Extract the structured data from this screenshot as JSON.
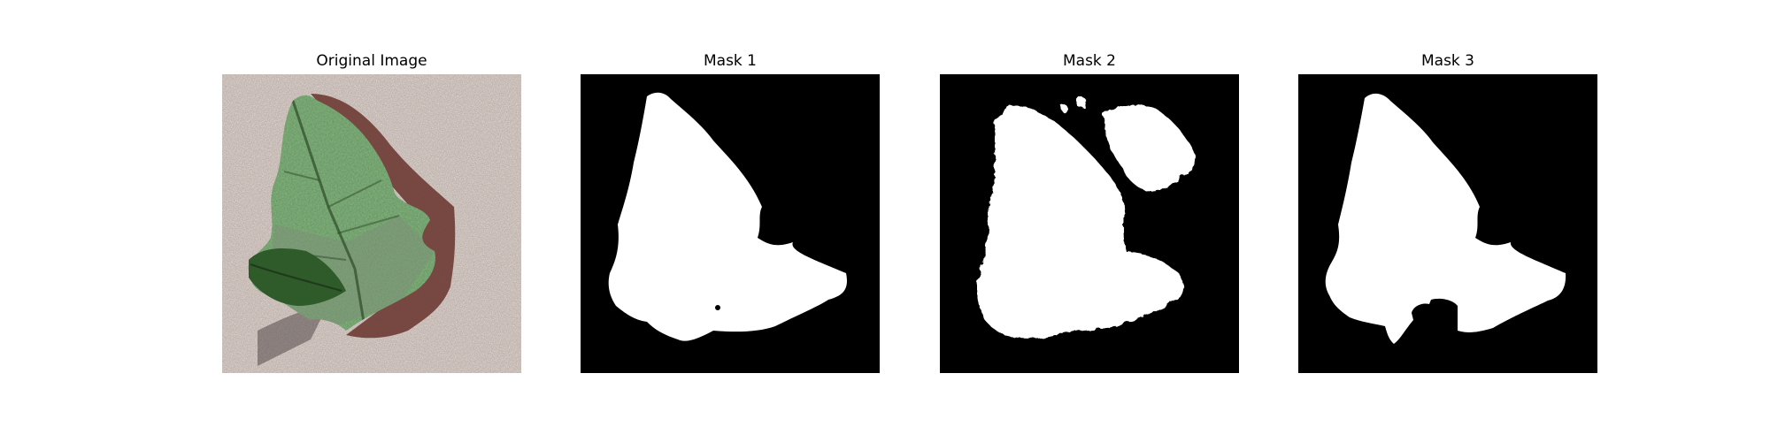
{
  "panels": [
    {
      "title": "Original Image",
      "kind": "photo-leaf"
    },
    {
      "title": "Mask 1",
      "kind": "binary-mask"
    },
    {
      "title": "Mask 2",
      "kind": "binary-mask"
    },
    {
      "title": "Mask 3",
      "kind": "binary-mask"
    }
  ],
  "colors": {
    "mask_background": "#000000",
    "mask_foreground": "#ffffff",
    "leaf_dark": "#2f5a2a",
    "leaf_light": "#9db896",
    "shadow": "#6e3b34",
    "background_noise": "#b9aaa3"
  }
}
